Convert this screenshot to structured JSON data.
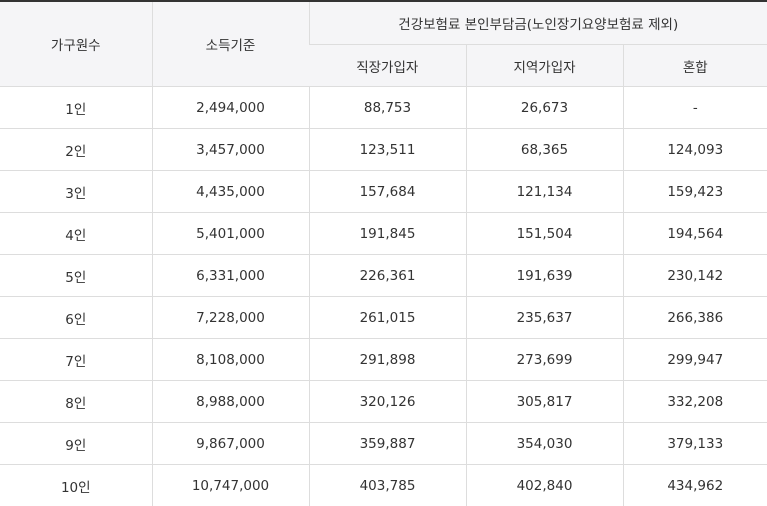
{
  "table": {
    "headers": {
      "household_size": "가구원수",
      "income_standard": "소득기준",
      "premium_group": "건강보험료 본인부담금(노인장기요양보험료 제외)",
      "employee": "직장가입자",
      "regional": "지역가입자",
      "mixed": "혼합"
    },
    "rows": [
      {
        "size": "1인",
        "income": "2,494,000",
        "employee": "88,753",
        "regional": "26,673",
        "mixed": "-"
      },
      {
        "size": "2인",
        "income": "3,457,000",
        "employee": "123,511",
        "regional": "68,365",
        "mixed": "124,093"
      },
      {
        "size": "3인",
        "income": "4,435,000",
        "employee": "157,684",
        "regional": "121,134",
        "mixed": "159,423"
      },
      {
        "size": "4인",
        "income": "5,401,000",
        "employee": "191,845",
        "regional": "151,504",
        "mixed": "194,564"
      },
      {
        "size": "5인",
        "income": "6,331,000",
        "employee": "226,361",
        "regional": "191,639",
        "mixed": "230,142"
      },
      {
        "size": "6인",
        "income": "7,228,000",
        "employee": "261,015",
        "regional": "235,637",
        "mixed": "266,386"
      },
      {
        "size": "7인",
        "income": "8,108,000",
        "employee": "291,898",
        "regional": "273,699",
        "mixed": "299,947"
      },
      {
        "size": "8인",
        "income": "8,988,000",
        "employee": "320,126",
        "regional": "305,817",
        "mixed": "332,208"
      },
      {
        "size": "9인",
        "income": "9,867,000",
        "employee": "359,887",
        "regional": "354,030",
        "mixed": "379,133"
      },
      {
        "size": "10인",
        "income": "10,747,000",
        "employee": "403,785",
        "regional": "402,840",
        "mixed": "434,962"
      }
    ]
  }
}
